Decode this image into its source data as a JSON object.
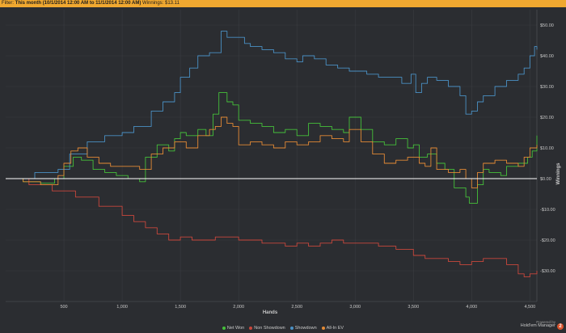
{
  "filter": {
    "label": "Filter:",
    "period": "This month",
    "range": "(10/1/2014 12:00 AM to 11/1/2014 12:00 AM)",
    "winnings_label": "Winnings:",
    "winnings_value": "$13.11"
  },
  "branding": {
    "powered_by": "Powered by",
    "product": "Hold'em Manager",
    "badge": "2"
  },
  "colors": {
    "background": "#2b2d31",
    "grid": "#3a3c41",
    "zero_line": "#ffffff",
    "net_won": "#45c03a",
    "non_showdown": "#c9473c",
    "showdown": "#4a90c4",
    "all_in_ev": "#e48a35"
  },
  "chart_data": {
    "type": "line",
    "title": "",
    "xlabel": "Hands",
    "ylabel": "Winnings",
    "xlim": [
      0,
      4560
    ],
    "ylim": [
      -40,
      55
    ],
    "x_ticks": [
      500,
      1000,
      1500,
      2000,
      2500,
      3000,
      3500,
      4000,
      4500
    ],
    "x_tick_labels": [
      "500",
      "1,000",
      "1,500",
      "2,000",
      "2,500",
      "3,000",
      "3,500",
      "4,000",
      "4,500"
    ],
    "y_ticks": [
      50,
      40,
      30,
      20,
      10,
      0,
      -10,
      -20,
      -30
    ],
    "y_tick_labels": [
      "$50.00",
      "$40.00",
      "$30.00",
      "$20.00",
      "$10.00",
      "$0.00",
      "-$10.00",
      "-$20.00",
      "-$30.00"
    ],
    "legend_position": "bottom",
    "grid": true,
    "series": [
      {
        "name": "Net Won",
        "color_key": "net_won",
        "points": [
          [
            0,
            0
          ],
          [
            150,
            -1
          ],
          [
            300,
            -1.5
          ],
          [
            420,
            0
          ],
          [
            500,
            4
          ],
          [
            580,
            7
          ],
          [
            650,
            6
          ],
          [
            750,
            3
          ],
          [
            850,
            2
          ],
          [
            950,
            1
          ],
          [
            1050,
            0
          ],
          [
            1150,
            -1
          ],
          [
            1200,
            7
          ],
          [
            1300,
            11
          ],
          [
            1400,
            9
          ],
          [
            1450,
            13
          ],
          [
            1500,
            15
          ],
          [
            1550,
            14
          ],
          [
            1650,
            16
          ],
          [
            1720,
            14
          ],
          [
            1780,
            21
          ],
          [
            1830,
            28
          ],
          [
            1900,
            25
          ],
          [
            1950,
            24
          ],
          [
            2000,
            19
          ],
          [
            2100,
            18
          ],
          [
            2200,
            17
          ],
          [
            2300,
            15
          ],
          [
            2400,
            16
          ],
          [
            2500,
            14
          ],
          [
            2600,
            18
          ],
          [
            2700,
            17
          ],
          [
            2800,
            16
          ],
          [
            2900,
            15
          ],
          [
            2950,
            20
          ],
          [
            3050,
            16
          ],
          [
            3150,
            12
          ],
          [
            3250,
            11
          ],
          [
            3350,
            13
          ],
          [
            3450,
            10
          ],
          [
            3500,
            11
          ],
          [
            3550,
            7
          ],
          [
            3620,
            8
          ],
          [
            3700,
            5
          ],
          [
            3770,
            3
          ],
          [
            3850,
            -3
          ],
          [
            3950,
            -6
          ],
          [
            3980,
            -8
          ],
          [
            4050,
            -2
          ],
          [
            4100,
            3
          ],
          [
            4150,
            2
          ],
          [
            4250,
            1
          ],
          [
            4300,
            4
          ],
          [
            4400,
            5
          ],
          [
            4480,
            7
          ],
          [
            4520,
            9
          ],
          [
            4560,
            14
          ]
        ]
      },
      {
        "name": "Non Showdown",
        "color_key": "non_showdown",
        "points": [
          [
            0,
            0
          ],
          [
            200,
            -2
          ],
          [
            400,
            -4
          ],
          [
            600,
            -6
          ],
          [
            800,
            -9
          ],
          [
            1000,
            -12
          ],
          [
            1100,
            -14
          ],
          [
            1200,
            -16
          ],
          [
            1300,
            -18
          ],
          [
            1400,
            -20
          ],
          [
            1500,
            -19
          ],
          [
            1600,
            -20
          ],
          [
            1700,
            -20
          ],
          [
            1800,
            -19
          ],
          [
            1900,
            -19
          ],
          [
            2000,
            -20
          ],
          [
            2200,
            -21
          ],
          [
            2400,
            -22
          ],
          [
            2500,
            -21
          ],
          [
            2600,
            -22
          ],
          [
            2700,
            -21
          ],
          [
            2800,
            -20
          ],
          [
            2900,
            -21
          ],
          [
            3000,
            -21
          ],
          [
            3200,
            -22
          ],
          [
            3350,
            -23
          ],
          [
            3500,
            -25
          ],
          [
            3600,
            -26
          ],
          [
            3700,
            -26
          ],
          [
            3800,
            -27
          ],
          [
            3900,
            -28
          ],
          [
            4000,
            -27
          ],
          [
            4100,
            -26
          ],
          [
            4200,
            -26
          ],
          [
            4300,
            -28
          ],
          [
            4400,
            -31
          ],
          [
            4450,
            -32
          ],
          [
            4500,
            -31
          ],
          [
            4560,
            -30
          ]
        ]
      },
      {
        "name": "Showdown",
        "color_key": "showdown",
        "points": [
          [
            0,
            0
          ],
          [
            250,
            2
          ],
          [
            450,
            3
          ],
          [
            550,
            8
          ],
          [
            700,
            12
          ],
          [
            850,
            14
          ],
          [
            1000,
            15
          ],
          [
            1100,
            17
          ],
          [
            1250,
            22
          ],
          [
            1350,
            25
          ],
          [
            1450,
            28
          ],
          [
            1500,
            33
          ],
          [
            1580,
            36
          ],
          [
            1650,
            40
          ],
          [
            1750,
            41
          ],
          [
            1850,
            48
          ],
          [
            1900,
            46
          ],
          [
            1950,
            46
          ],
          [
            2050,
            44
          ],
          [
            2100,
            43
          ],
          [
            2200,
            42
          ],
          [
            2300,
            41
          ],
          [
            2400,
            39
          ],
          [
            2500,
            38
          ],
          [
            2550,
            40
          ],
          [
            2650,
            39
          ],
          [
            2750,
            37
          ],
          [
            2850,
            36
          ],
          [
            2950,
            35
          ],
          [
            3050,
            35
          ],
          [
            3100,
            34
          ],
          [
            3200,
            33
          ],
          [
            3300,
            33
          ],
          [
            3400,
            31
          ],
          [
            3480,
            34
          ],
          [
            3520,
            28
          ],
          [
            3570,
            31
          ],
          [
            3620,
            33
          ],
          [
            3700,
            32
          ],
          [
            3800,
            30
          ],
          [
            3900,
            27
          ],
          [
            3950,
            21
          ],
          [
            4000,
            22
          ],
          [
            4050,
            25
          ],
          [
            4100,
            27
          ],
          [
            4200,
            30
          ],
          [
            4300,
            32
          ],
          [
            4400,
            34
          ],
          [
            4450,
            36
          ],
          [
            4500,
            40
          ],
          [
            4540,
            43
          ],
          [
            4560,
            42
          ]
        ]
      },
      {
        "name": "All-In EV",
        "color_key": "all_in_ev",
        "points": [
          [
            0,
            0
          ],
          [
            150,
            -1
          ],
          [
            300,
            -2
          ],
          [
            450,
            1
          ],
          [
            500,
            5
          ],
          [
            560,
            9
          ],
          [
            620,
            10
          ],
          [
            700,
            7
          ],
          [
            800,
            5
          ],
          [
            900,
            4
          ],
          [
            1000,
            4
          ],
          [
            1100,
            4
          ],
          [
            1150,
            3
          ],
          [
            1250,
            8
          ],
          [
            1350,
            10
          ],
          [
            1450,
            12
          ],
          [
            1550,
            10
          ],
          [
            1650,
            14
          ],
          [
            1750,
            16
          ],
          [
            1800,
            17
          ],
          [
            1850,
            20
          ],
          [
            1900,
            18
          ],
          [
            1950,
            17
          ],
          [
            2000,
            11
          ],
          [
            2100,
            12
          ],
          [
            2200,
            11
          ],
          [
            2300,
            10
          ],
          [
            2400,
            12
          ],
          [
            2500,
            11
          ],
          [
            2600,
            12
          ],
          [
            2700,
            14
          ],
          [
            2800,
            13
          ],
          [
            2900,
            12
          ],
          [
            2950,
            16
          ],
          [
            3050,
            12
          ],
          [
            3150,
            8
          ],
          [
            3250,
            5
          ],
          [
            3350,
            6
          ],
          [
            3450,
            7
          ],
          [
            3550,
            5
          ],
          [
            3600,
            4
          ],
          [
            3650,
            10
          ],
          [
            3700,
            3
          ],
          [
            3800,
            2
          ],
          [
            3900,
            3
          ],
          [
            3950,
            0
          ],
          [
            4000,
            -3
          ],
          [
            4050,
            2
          ],
          [
            4100,
            5
          ],
          [
            4200,
            6
          ],
          [
            4300,
            5
          ],
          [
            4400,
            4
          ],
          [
            4450,
            7
          ],
          [
            4500,
            10
          ],
          [
            4560,
            11
          ]
        ]
      }
    ]
  }
}
